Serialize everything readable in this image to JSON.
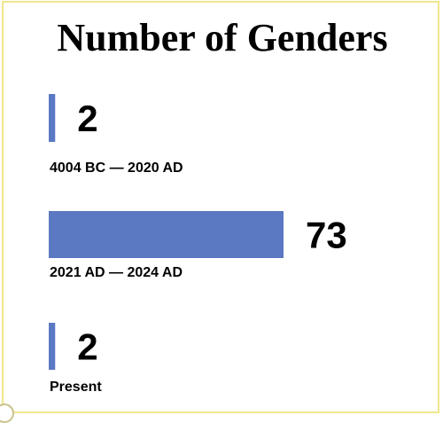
{
  "chart_data": {
    "type": "bar",
    "orientation": "horizontal",
    "title": "Number of Genders",
    "categories": [
      "4004 BC — 2020 AD",
      "2021 AD — 2024 AD",
      "Present"
    ],
    "values": [
      2,
      73,
      2
    ],
    "value_labels": [
      "2",
      "73",
      "2"
    ],
    "bar_color": "#5b78c3",
    "legend": "none",
    "grid": false
  }
}
